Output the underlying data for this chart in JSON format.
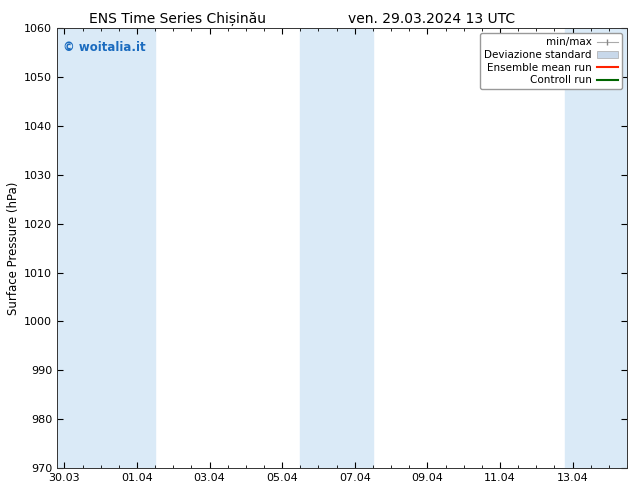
{
  "title_left": "ENS Time Series Chișinău",
  "title_right": "ven. 29.03.2024 13 UTC",
  "ylabel": "Surface Pressure (hPa)",
  "ylim": [
    970,
    1060
  ],
  "yticks": [
    970,
    980,
    990,
    1000,
    1010,
    1020,
    1030,
    1040,
    1050,
    1060
  ],
  "xtick_labels": [
    "30.03",
    "01.04",
    "03.04",
    "05.04",
    "07.04",
    "09.04",
    "11.04",
    "13.04"
  ],
  "xtick_positions": [
    0,
    2,
    4,
    6,
    8,
    10,
    12,
    14
  ],
  "xlim": [
    -0.2,
    15.5
  ],
  "watermark": "© woitalia.it",
  "watermark_color": "#1a6bbf",
  "bg_color": "#ffffff",
  "plot_bg_color": "#ffffff",
  "shaded_bands": [
    {
      "x_start": -0.2,
      "x_end": 1.5,
      "color": "#daeaf7"
    },
    {
      "x_start": 1.5,
      "x_end": 2.5,
      "color": "#daeaf7"
    },
    {
      "x_start": 6.5,
      "x_end": 8.0,
      "color": "#daeaf7"
    },
    {
      "x_start": 7.5,
      "x_end": 8.5,
      "color": "#daeaf7"
    },
    {
      "x_start": 13.8,
      "x_end": 15.5,
      "color": "#daeaf7"
    }
  ],
  "legend_entries": [
    {
      "label": "min/max",
      "type": "errorbar",
      "color": "#aaaaaa"
    },
    {
      "label": "Deviazione standard",
      "type": "bar",
      "color": "#c8d8ea"
    },
    {
      "label": "Ensemble mean run",
      "type": "line",
      "color": "#ff0000"
    },
    {
      "label": "Controll run",
      "type": "line",
      "color": "#008000"
    }
  ],
  "font_family": "DejaVu Sans",
  "title_fontsize": 10,
  "tick_fontsize": 8,
  "ylabel_fontsize": 8.5,
  "legend_fontsize": 7.5
}
